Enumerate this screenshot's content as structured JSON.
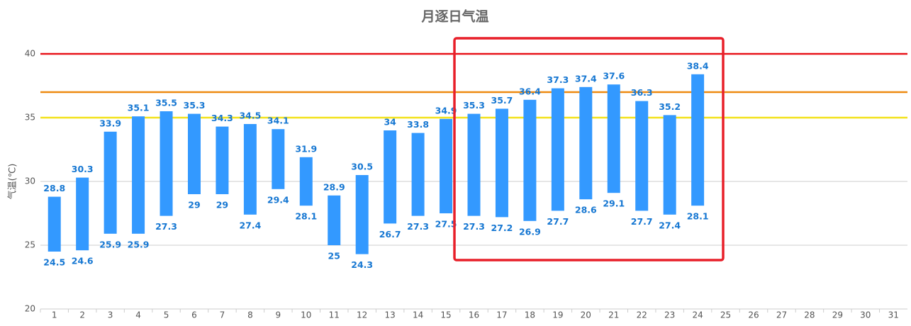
{
  "chart_data": {
    "type": "floating-bar",
    "title": "月逐日气温",
    "y_label": "气温(℃)",
    "categories": [
      "1",
      "2",
      "3",
      "4",
      "5",
      "6",
      "7",
      "8",
      "9",
      "10",
      "11",
      "12",
      "13",
      "14",
      "15",
      "16",
      "17",
      "18",
      "19",
      "20",
      "21",
      "22",
      "23",
      "24",
      "25",
      "26",
      "27",
      "28",
      "29",
      "30",
      "31"
    ],
    "lows": [
      24.5,
      24.6,
      25.9,
      25.9,
      27.3,
      29,
      29,
      27.4,
      29.4,
      28.1,
      25,
      24.3,
      26.7,
      27.3,
      27.5,
      27.3,
      27.2,
      26.9,
      27.7,
      28.6,
      29.1,
      27.7,
      27.4,
      28.1,
      null,
      null,
      null,
      null,
      null,
      null,
      null
    ],
    "highs": [
      28.8,
      30.3,
      33.9,
      35.1,
      35.5,
      35.3,
      34.3,
      34.5,
      34.1,
      31.9,
      28.9,
      30.5,
      34,
      33.8,
      34.9,
      35.3,
      35.7,
      36.4,
      37.3,
      37.4,
      37.6,
      36.3,
      35.2,
      38.4,
      null,
      null,
      null,
      null,
      null,
      null,
      null
    ],
    "color": "#3399ff",
    "label_color": "#1677d2",
    "ylim": [
      20,
      42
    ],
    "yticks": [
      20,
      25,
      30,
      35,
      40
    ],
    "grid": true,
    "reference_lines": [
      {
        "value": 40,
        "color": "#e8141a"
      },
      {
        "value": 37,
        "color": "#ee8a10"
      },
      {
        "value": 35,
        "color": "#f2e21a"
      }
    ]
  }
}
